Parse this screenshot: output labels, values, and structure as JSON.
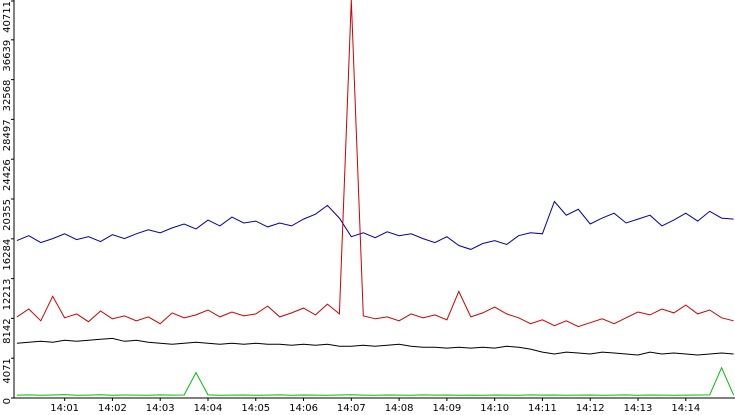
{
  "chart_data": {
    "type": "line",
    "xlim": [
      -0.06,
      15.03
    ],
    "xticks": [
      {
        "value": 1,
        "label": "14:01"
      },
      {
        "value": 2,
        "label": "14:02"
      },
      {
        "value": 3,
        "label": "14:03"
      },
      {
        "value": 4,
        "label": "14:04"
      },
      {
        "value": 5,
        "label": "14:05"
      },
      {
        "value": 6,
        "label": "14:06"
      },
      {
        "value": 7,
        "label": "14:07"
      },
      {
        "value": 8,
        "label": "14:08"
      },
      {
        "value": 9,
        "label": "14:09"
      },
      {
        "value": 10,
        "label": "14:10"
      },
      {
        "value": 11,
        "label": "14:11"
      },
      {
        "value": 12,
        "label": "14:12"
      },
      {
        "value": 13,
        "label": "14:13"
      },
      {
        "value": 14,
        "label": "14:14"
      }
    ],
    "ylim": [
      0,
      40711
    ],
    "yticks": [
      0,
      4071,
      8142,
      12213,
      16284,
      20355,
      24426,
      28497,
      32568,
      36639,
      40711
    ],
    "x": [
      0,
      0.25,
      0.5,
      0.75,
      1,
      1.25,
      1.5,
      1.75,
      2,
      2.25,
      2.5,
      2.75,
      3,
      3.25,
      3.5,
      3.75,
      4,
      4.25,
      4.5,
      4.75,
      5,
      5.25,
      5.5,
      5.75,
      6,
      6.25,
      6.5,
      6.75,
      7,
      7.25,
      7.5,
      7.75,
      8,
      8.25,
      8.5,
      8.75,
      9,
      9.25,
      9.5,
      9.75,
      10,
      10.25,
      10.5,
      10.75,
      11,
      11.25,
      11.5,
      11.75,
      12,
      12.25,
      12.5,
      12.75,
      13,
      13.25,
      13.5,
      13.75,
      14,
      14.25,
      14.5,
      14.75,
      15
    ],
    "series": [
      {
        "color": "#0000b0",
        "values": [
          16100,
          16600,
          15900,
          16300,
          16800,
          16200,
          16500,
          16000,
          16700,
          16300,
          16800,
          17200,
          16900,
          17400,
          17800,
          17300,
          18200,
          17600,
          18500,
          17900,
          18100,
          17500,
          17900,
          17600,
          18300,
          18800,
          19700,
          18400,
          16500,
          16900,
          16400,
          17000,
          16600,
          16800,
          16300,
          15900,
          16500,
          15600,
          15200,
          15800,
          16100,
          15700,
          16600,
          16900,
          16800,
          20100,
          18700,
          19300,
          17800,
          18400,
          18900,
          17900,
          18300,
          18700,
          17600,
          18200,
          18900,
          18100,
          19100,
          18400,
          18300
        ]
      },
      {
        "color": "#d00000",
        "values": [
          8300,
          9100,
          7900,
          10400,
          8200,
          8600,
          7800,
          8900,
          8100,
          8400,
          7900,
          8300,
          7600,
          8700,
          8200,
          8500,
          9000,
          8300,
          8800,
          8400,
          8600,
          9400,
          8300,
          8700,
          9200,
          8500,
          9600,
          8600,
          40711,
          8400,
          8100,
          8300,
          7900,
          8600,
          8200,
          8500,
          8000,
          10900,
          8300,
          8700,
          9300,
          8600,
          8200,
          7600,
          8000,
          7400,
          7900,
          7300,
          7700,
          8100,
          7600,
          8200,
          8800,
          8500,
          9100,
          8700,
          9500,
          8600,
          9000,
          8200,
          7900
        ]
      },
      {
        "color": "#000000",
        "values": [
          5600,
          5700,
          5800,
          5700,
          5900,
          5800,
          5900,
          6000,
          6100,
          5800,
          5900,
          5700,
          5600,
          5500,
          5600,
          5700,
          5600,
          5500,
          5600,
          5500,
          5600,
          5500,
          5500,
          5400,
          5500,
          5400,
          5500,
          5300,
          5300,
          5400,
          5300,
          5400,
          5500,
          5300,
          5200,
          5200,
          5100,
          5200,
          5100,
          5200,
          5100,
          5300,
          5200,
          5000,
          4700,
          4500,
          4700,
          4600,
          4500,
          4700,
          4600,
          4500,
          4400,
          4700,
          4500,
          4600,
          4500,
          4400,
          4500,
          4600,
          4500
        ]
      },
      {
        "color": "#00c000",
        "values": [
          300,
          320,
          280,
          310,
          350,
          290,
          300,
          330,
          280,
          310,
          300,
          290,
          320,
          300,
          310,
          2600,
          320,
          290,
          300,
          310,
          280,
          300,
          320,
          290,
          310,
          300,
          280,
          310,
          330,
          300,
          290,
          310,
          300,
          280,
          320,
          300,
          310,
          290,
          300,
          280,
          310,
          300,
          290,
          320,
          300,
          310,
          280,
          300,
          310,
          290,
          300,
          320,
          280,
          310,
          300,
          290,
          300,
          310,
          320,
          3100,
          300
        ]
      }
    ]
  }
}
